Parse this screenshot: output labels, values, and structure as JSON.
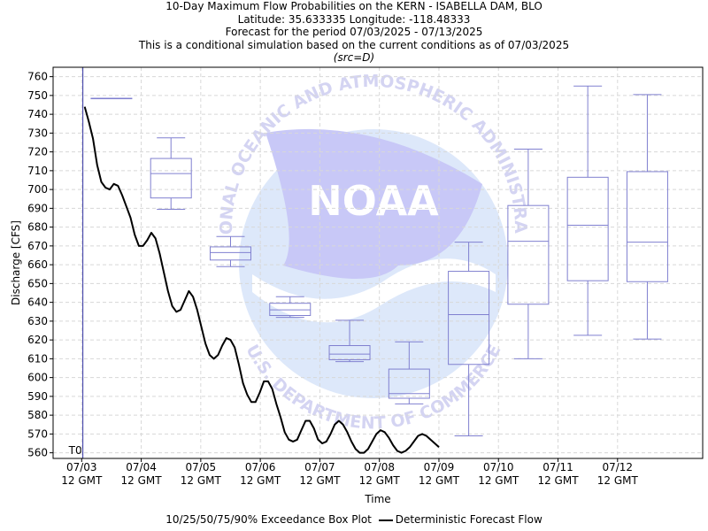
{
  "titles": {
    "line1": "10-Day Maximum Flow Probabilities on the KERN - ISABELLA DAM, BLO",
    "line2": "Latitude: 35.633335 Longitude: -118.48333",
    "line3": "Forecast for the period 07/03/2025 - 07/13/2025",
    "line4": "This is a conditional simulation based on the current conditions as of 07/03/2025",
    "line5": "(src=D)"
  },
  "legend": {
    "box_label": "10/25/50/75/90% Exceedance Box Plot",
    "line_label": "Deterministic Forecast Flow"
  },
  "watermark": {
    "logo_text": "NOAA",
    "arc_top": "NATIONAL OCEANIC AND ATMOSPHERIC ADMINISTRATION",
    "arc_bottom": "U.S. DEPARTMENT OF COMMERCE"
  },
  "colors": {
    "box": "#8080d0",
    "line": "#000000",
    "t0_line": "#3030a0",
    "grid": "#d8d8d8"
  },
  "chart_data": {
    "type": "box",
    "xlabel": "Time",
    "ylabel": "Discharge [CFS]",
    "ylim": [
      557,
      765
    ],
    "yticks": [
      560,
      570,
      580,
      590,
      600,
      610,
      620,
      630,
      640,
      650,
      660,
      670,
      680,
      690,
      700,
      710,
      720,
      730,
      740,
      750,
      760
    ],
    "xlim": [
      -0.48,
      10.43
    ],
    "xticks": [
      {
        "pos": 0,
        "line1": "07/03",
        "line2": "12 GMT"
      },
      {
        "pos": 1,
        "line1": "07/04",
        "line2": "12 GMT"
      },
      {
        "pos": 2,
        "line1": "07/05",
        "line2": "12 GMT"
      },
      {
        "pos": 3,
        "line1": "07/06",
        "line2": "12 GMT"
      },
      {
        "pos": 4,
        "line1": "07/07",
        "line2": "12 GMT"
      },
      {
        "pos": 5,
        "line1": "07/08",
        "line2": "12 GMT"
      },
      {
        "pos": 6,
        "line1": "07/09",
        "line2": "12 GMT"
      },
      {
        "pos": 7,
        "line1": "07/10",
        "line2": "12 GMT"
      },
      {
        "pos": 8,
        "line1": "07/11",
        "line2": "12 GMT"
      },
      {
        "pos": 9,
        "line1": "07/12",
        "line2": "12 GMT"
      }
    ],
    "t0": {
      "pos": 0.02,
      "label": "T0"
    },
    "boxes": [
      {
        "day": "07/03-07/04",
        "center": 0.5,
        "p10": 748.5,
        "p25": 748.5,
        "p50": 748.5,
        "p75": 748.5,
        "p90": 748.5
      },
      {
        "day": "07/04-07/05",
        "center": 1.5,
        "p10": 689.5,
        "p25": 695.5,
        "p50": 708.5,
        "p75": 716.5,
        "p90": 727.5
      },
      {
        "day": "07/05-07/06",
        "center": 2.5,
        "p10": 659.0,
        "p25": 662.5,
        "p50": 666.5,
        "p75": 669.5,
        "p90": 675.0
      },
      {
        "day": "07/06-07/07",
        "center": 3.5,
        "p10": 632.0,
        "p25": 633.0,
        "p50": 636.0,
        "p75": 639.5,
        "p90": 643.0
      },
      {
        "day": "07/07-07/08",
        "center": 4.5,
        "p10": 608.5,
        "p25": 609.5,
        "p50": 612.5,
        "p75": 617.0,
        "p90": 630.5
      },
      {
        "day": "07/08-07/09",
        "center": 5.5,
        "p10": 586.0,
        "p25": 589.0,
        "p50": 591.5,
        "p75": 604.5,
        "p90": 619.0
      },
      {
        "day": "07/09-07/10",
        "center": 6.5,
        "p10": 569.0,
        "p25": 607.0,
        "p50": 633.5,
        "p75": 656.5,
        "p90": 672.0
      },
      {
        "day": "07/10-07/11",
        "center": 7.5,
        "p10": 610.0,
        "p25": 639.0,
        "p50": 672.5,
        "p75": 691.5,
        "p90": 721.5
      },
      {
        "day": "07/11-07/12",
        "center": 8.5,
        "p10": 622.5,
        "p25": 651.5,
        "p50": 681.0,
        "p75": 706.5,
        "p90": 755.0
      },
      {
        "day": "07/12-07/13",
        "center": 9.5,
        "p10": 620.5,
        "p25": 651.0,
        "p50": 672.0,
        "p75": 709.5,
        "p90": 750.5
      }
    ],
    "deterministic": {
      "name": "Deterministic Forecast Flow",
      "x": [
        0.05,
        0.12,
        0.19,
        0.26,
        0.33,
        0.4,
        0.47,
        0.54,
        0.61,
        0.68,
        0.75,
        0.82,
        0.89,
        0.96,
        1.03,
        1.1,
        1.17,
        1.24,
        1.31,
        1.38,
        1.45,
        1.52,
        1.59,
        1.66,
        1.73,
        1.8,
        1.87,
        1.94,
        2.01,
        2.08,
        2.15,
        2.22,
        2.29,
        2.36,
        2.43,
        2.5,
        2.57,
        2.64,
        2.71,
        2.78,
        2.85,
        2.92,
        2.99,
        3.06,
        3.13,
        3.2,
        3.27,
        3.34,
        3.41,
        3.48,
        3.55,
        3.62,
        3.69,
        3.76,
        3.83,
        3.9,
        3.97,
        4.04,
        4.11,
        4.18,
        4.25,
        4.32,
        4.39,
        4.46,
        4.53,
        4.6,
        4.67,
        4.74,
        4.81,
        4.88,
        4.95,
        5.02,
        5.09,
        5.16,
        5.23,
        5.3,
        5.37,
        5.44,
        5.51,
        5.58,
        5.65,
        5.72,
        5.79,
        5.86,
        5.93,
        6.0
      ],
      "y": [
        744,
        736,
        727,
        713,
        704,
        701,
        700,
        703,
        702,
        697,
        691,
        685,
        676,
        670,
        670,
        673,
        677,
        674,
        666,
        656,
        646,
        638,
        635,
        636,
        641,
        646,
        643,
        636,
        627,
        618,
        612,
        610,
        612,
        617,
        621,
        620,
        616,
        607,
        597,
        591,
        587,
        587,
        592,
        598,
        598,
        594,
        586,
        579,
        571,
        567,
        566,
        567,
        572,
        577,
        577,
        573,
        567,
        565,
        566,
        570,
        575,
        577,
        575,
        571,
        566,
        562,
        560,
        560,
        562,
        566,
        570,
        572,
        571,
        568,
        564,
        561,
        560,
        561,
        563,
        566,
        569,
        570,
        569,
        567,
        565,
        563
      ]
    }
  }
}
